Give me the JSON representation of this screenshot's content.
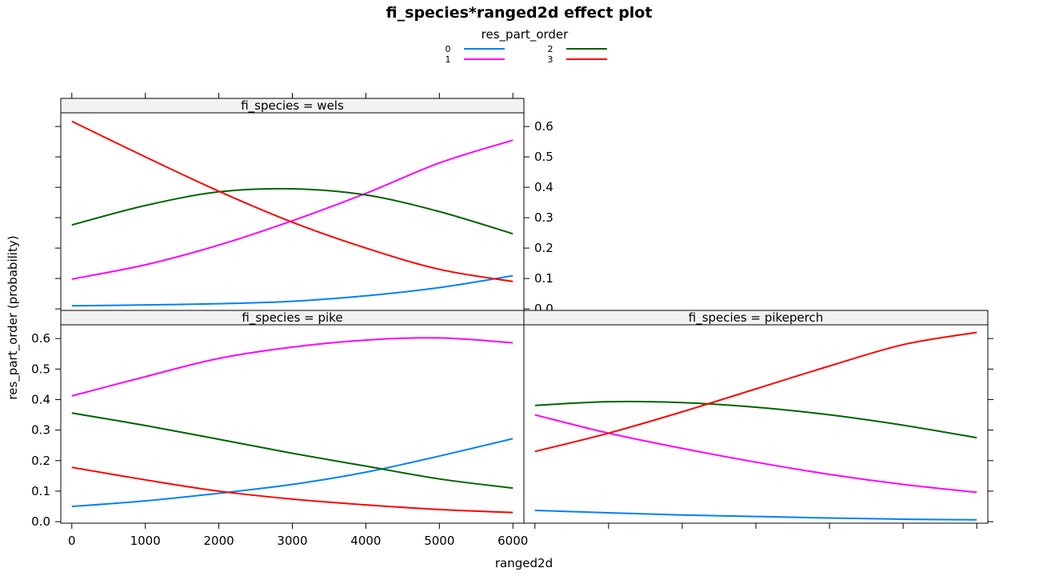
{
  "chart_data": {
    "type": "line",
    "title": "fi_species*ranged2d effect plot",
    "xlabel": "ranged2d",
    "ylabel": "res_part_order (probability)",
    "xlim": [
      -150,
      6150
    ],
    "ylim": [
      -0.005,
      0.645
    ],
    "x_ticks": [
      0,
      1000,
      2000,
      3000,
      4000,
      5000,
      6000
    ],
    "y_ticks": [
      0.0,
      0.1,
      0.2,
      0.3,
      0.4,
      0.5,
      0.6
    ],
    "x_tick_labels": [
      "0",
      "1000",
      "2000",
      "3000",
      "4000",
      "5000",
      "6000"
    ],
    "y_tick_labels": [
      "0.0",
      "0.1",
      "0.2",
      "0.3",
      "0.4",
      "0.5",
      "0.6"
    ],
    "legend": {
      "title": "res_part_order",
      "position": "top",
      "entries": [
        {
          "name": "0",
          "color": "#0080ff"
        },
        {
          "name": "1",
          "color": "#ff00ff"
        },
        {
          "name": "2",
          "color": "#006400"
        },
        {
          "name": "3",
          "color": "#ff0000"
        }
      ]
    },
    "x": [
      0,
      1000,
      2000,
      3000,
      4000,
      5000,
      6000
    ],
    "panels": [
      {
        "strip": "fi_species = wels",
        "series": [
          {
            "name": "0",
            "values": [
              0.01,
              0.013,
              0.017,
              0.025,
              0.043,
              0.07,
              0.109
            ]
          },
          {
            "name": "1",
            "values": [
              0.098,
              0.145,
              0.21,
              0.29,
              0.38,
              0.48,
              0.555
            ]
          },
          {
            "name": "2",
            "values": [
              0.276,
              0.34,
              0.385,
              0.395,
              0.375,
              0.32,
              0.247
            ]
          },
          {
            "name": "3",
            "values": [
              0.617,
              0.5,
              0.387,
              0.285,
              0.2,
              0.13,
              0.09
            ]
          }
        ]
      },
      {
        "strip": "fi_species = pike",
        "series": [
          {
            "name": "0",
            "values": [
              0.05,
              0.068,
              0.093,
              0.122,
              0.162,
              0.215,
              0.272
            ]
          },
          {
            "name": "1",
            "values": [
              0.412,
              0.475,
              0.535,
              0.572,
              0.595,
              0.602,
              0.586
            ]
          },
          {
            "name": "2",
            "values": [
              0.356,
              0.315,
              0.27,
              0.224,
              0.182,
              0.14,
              0.11
            ]
          },
          {
            "name": "3",
            "values": [
              0.178,
              0.137,
              0.1,
              0.074,
              0.055,
              0.04,
              0.03
            ]
          }
        ]
      },
      {
        "strip": "fi_species = pikeperch",
        "series": [
          {
            "name": "0",
            "values": [
              0.037,
              0.029,
              0.022,
              0.017,
              0.012,
              0.008,
              0.006
            ]
          },
          {
            "name": "1",
            "values": [
              0.35,
              0.29,
              0.24,
              0.195,
              0.155,
              0.122,
              0.096
            ]
          },
          {
            "name": "2",
            "values": [
              0.381,
              0.393,
              0.39,
              0.375,
              0.35,
              0.316,
              0.275
            ]
          },
          {
            "name": "3",
            "values": [
              0.23,
              0.29,
              0.36,
              0.435,
              0.51,
              0.58,
              0.62
            ]
          }
        ]
      }
    ]
  }
}
